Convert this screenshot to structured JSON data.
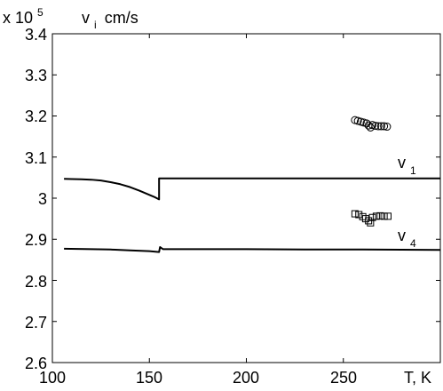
{
  "chart_data": {
    "type": "line",
    "title": "",
    "xlabel": "T, K",
    "ylabel": "v",
    "ylabel_subscript": "i",
    "ylabel_unit": "cm/s",
    "y_multiplier": "x 10",
    "y_multiplier_exp": "5",
    "xlim": [
      100,
      300
    ],
    "ylim": [
      2.6,
      3.4
    ],
    "grid": false,
    "legend": "none",
    "x_ticks": [
      100,
      150,
      200,
      250
    ],
    "x_tick_labels": [
      "100",
      "150",
      "200",
      "250"
    ],
    "y_ticks": [
      2.6,
      2.7,
      2.8,
      2.9,
      3.0,
      3.1,
      3.2,
      3.3,
      3.4
    ],
    "y_tick_labels": [
      "2.6",
      "2.7",
      "2.8",
      "2.9",
      "3",
      "3.1",
      "3.2",
      "3.3",
      "3.4"
    ],
    "series": [
      {
        "name": "v1",
        "label_main": "v",
        "label_sub": "1",
        "style": "line",
        "color": "#000000",
        "points": [
          [
            106,
            3.047
          ],
          [
            110,
            3.0465
          ],
          [
            115,
            3.046
          ],
          [
            120,
            3.045
          ],
          [
            125,
            3.043
          ],
          [
            130,
            3.039
          ],
          [
            135,
            3.034
          ],
          [
            140,
            3.027
          ],
          [
            145,
            3.018
          ],
          [
            150,
            3.008
          ],
          [
            153,
            3.002
          ],
          [
            155,
            2.997
          ],
          [
            155,
            3.048
          ],
          [
            160,
            3.048
          ],
          [
            180,
            3.048
          ],
          [
            200,
            3.048
          ],
          [
            220,
            3.048
          ],
          [
            240,
            3.048
          ],
          [
            260,
            3.048
          ],
          [
            280,
            3.048
          ],
          [
            300,
            3.048
          ]
        ]
      },
      {
        "name": "v4",
        "label_main": "v",
        "label_sub": "4",
        "style": "line",
        "color": "#000000",
        "points": [
          [
            106,
            2.877
          ],
          [
            120,
            2.876
          ],
          [
            130,
            2.875
          ],
          [
            140,
            2.873
          ],
          [
            150,
            2.871
          ],
          [
            155,
            2.869
          ],
          [
            155.5,
            2.881
          ],
          [
            157,
            2.876
          ],
          [
            170,
            2.876
          ],
          [
            200,
            2.876
          ],
          [
            230,
            2.875
          ],
          [
            260,
            2.875
          ],
          [
            300,
            2.874
          ]
        ]
      },
      {
        "name": "v1 experimental",
        "style": "circle",
        "color": "#000000",
        "points": [
          [
            256,
            3.19
          ],
          [
            257.5,
            3.188
          ],
          [
            259,
            3.186
          ],
          [
            260.5,
            3.184
          ],
          [
            262,
            3.182
          ],
          [
            263,
            3.177
          ],
          [
            264,
            3.172
          ],
          [
            265,
            3.178
          ],
          [
            266.5,
            3.176
          ],
          [
            268,
            3.175
          ],
          [
            269.5,
            3.175
          ],
          [
            271,
            3.175
          ],
          [
            272.5,
            3.174
          ]
        ]
      },
      {
        "name": "v4 experimental",
        "style": "square",
        "color": "#000000",
        "points": [
          [
            256,
            2.962
          ],
          [
            258,
            2.96
          ],
          [
            260,
            2.955
          ],
          [
            261.5,
            2.95
          ],
          [
            263,
            2.945
          ],
          [
            264,
            2.94
          ],
          [
            265,
            2.953
          ],
          [
            267,
            2.956
          ],
          [
            269,
            2.957
          ],
          [
            271,
            2.956
          ],
          [
            273,
            2.956
          ]
        ]
      }
    ]
  }
}
